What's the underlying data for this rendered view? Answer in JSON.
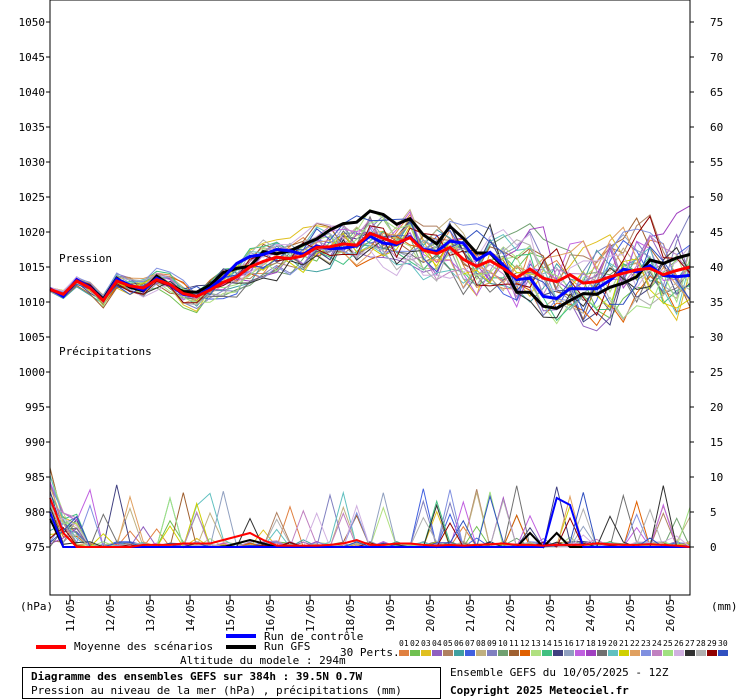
{
  "chart_data": {
    "type": "line",
    "left_axis": {
      "unit": "(hPa)",
      "ticks": [
        1050,
        1045,
        1040,
        1035,
        1030,
        1025,
        1020,
        1015,
        1010,
        1005,
        1000,
        995,
        990,
        985,
        980,
        975
      ],
      "range": [
        975,
        1050
      ]
    },
    "right_axis": {
      "unit": "(mm)",
      "ticks": [
        75,
        70,
        65,
        60,
        55,
        50,
        45,
        40,
        35,
        30,
        25,
        20,
        15,
        10,
        5,
        0
      ],
      "range": [
        0,
        75
      ]
    },
    "x_dates": [
      "11/05",
      "12/05",
      "13/05",
      "14/05",
      "15/05",
      "16/05",
      "17/05",
      "18/05",
      "19/05",
      "20/05",
      "21/05",
      "22/05",
      "23/05",
      "24/05",
      "25/05",
      "26/05"
    ],
    "x_days": [
      0.5,
      1.5,
      2.5,
      3.5,
      4.5,
      5.5,
      6.5,
      7.5,
      8.5,
      9.5,
      10.5,
      11.5,
      12.5,
      13.5,
      14.5,
      15.5
    ],
    "x_range_days": [
      0,
      16
    ],
    "labels": {
      "pressure": "Pression",
      "precip": "Précipitations"
    },
    "series": [
      {
        "name": "Moyenne des scénarios",
        "color": "#ff0000",
        "pressure": [
          1011.8,
          1011.1,
          1013.0,
          1012.0,
          1010.2,
          1013.0,
          1012.3,
          1012.0,
          1013.2,
          1012.5,
          1011.2,
          1010.8,
          1011.7,
          1012.8,
          1013.6,
          1015.0,
          1015.8,
          1016.4,
          1016.2,
          1016.6,
          1017.8,
          1017.9,
          1018.3,
          1018.1,
          1019.8,
          1019.1,
          1018.4,
          1019.2,
          1017.4,
          1016.9,
          1017.8,
          1016.1,
          1015.1,
          1015.9,
          1014.8,
          1013.5,
          1014.7,
          1013.4,
          1012.9,
          1013.9,
          1012.7,
          1012.9,
          1013.6,
          1014.1,
          1014.6,
          1014.8,
          1013.9,
          1014.5,
          1015.0
        ],
        "precip": [
          7,
          2,
          0,
          0,
          0,
          0,
          0,
          0.3,
          0.3,
          0.3,
          0.5,
          0.5,
          0.5,
          1,
          1.5,
          2,
          1,
          0.2,
          0.2,
          0.2,
          0.2,
          0.3,
          0.5,
          1,
          0.3,
          0.3,
          0.5,
          0.5,
          0.3,
          0.2,
          0.3,
          0.2,
          0.3,
          0.4,
          0.5,
          0.3,
          0.3,
          0.2,
          0.3,
          0.3,
          0.3,
          0.5,
          0.4,
          0.3,
          0.3,
          0.4,
          0.3,
          0.2,
          0
        ]
      },
      {
        "name": "Run de contrôle",
        "color": "#0000ff",
        "pressure": [
          1011.9,
          1010.8,
          1013.2,
          1012.1,
          1010.2,
          1013.3,
          1012.4,
          1011.7,
          1013.4,
          1012.4,
          1011.1,
          1010.8,
          1012.0,
          1013.5,
          1015.5,
          1016.5,
          1016.8,
          1017.5,
          1017.3,
          1016.8,
          1018.0,
          1017.6,
          1017.7,
          1018.0,
          1019.4,
          1018.4,
          1018.2,
          1019.3,
          1017.5,
          1017.2,
          1018.7,
          1018.4,
          1016.0,
          1017.1,
          1015.3,
          1013.2,
          1013.4,
          1010.8,
          1010.5,
          1011.9,
          1011.9,
          1011.9,
          1013.1,
          1014.7,
          1014.3,
          1015.2,
          1013.8,
          1013.6,
          1013.8
        ],
        "precip": [
          5,
          0,
          0,
          0,
          0,
          0,
          0,
          0,
          0,
          0,
          0,
          0,
          0,
          0,
          0,
          0,
          0,
          0,
          0,
          0,
          0,
          0,
          0,
          0,
          0,
          0,
          0,
          0,
          0,
          0,
          0,
          0,
          0,
          0,
          0,
          0,
          0,
          0,
          7,
          6,
          0,
          0,
          0,
          0,
          0,
          0,
          0,
          0,
          0
        ]
      },
      {
        "name": "Run GFS",
        "color": "#000000",
        "pressure": [
          1011.8,
          1010.9,
          1013.0,
          1012.2,
          1010.4,
          1013.4,
          1012.1,
          1011.6,
          1013.7,
          1012.4,
          1011.5,
          1011.4,
          1012.4,
          1014.2,
          1014.8,
          1015.1,
          1017.2,
          1016.9,
          1017.3,
          1018.2,
          1019.0,
          1020.3,
          1021.2,
          1021.4,
          1023.0,
          1022.5,
          1021.1,
          1021.9,
          1019.6,
          1018.3,
          1020.8,
          1019.1,
          1017.0,
          1017.0,
          1015.0,
          1011.4,
          1011.4,
          1009.4,
          1009.1,
          1010.2,
          1011.2,
          1011.1,
          1012.1,
          1012.7,
          1013.6,
          1016.0,
          1015.5,
          1016.3,
          1016.8
        ],
        "precip": [
          4,
          0,
          0,
          0,
          0,
          0,
          0,
          0,
          0,
          0,
          0,
          0,
          0,
          0,
          0.5,
          1,
          0.5,
          0,
          0,
          0,
          0,
          0,
          0,
          0,
          0,
          0,
          0,
          0,
          0,
          0,
          0,
          0,
          0,
          0,
          0,
          0,
          2,
          0,
          2,
          0,
          0,
          0,
          0,
          0,
          0,
          0,
          0,
          0,
          0
        ]
      }
    ]
  },
  "legend": {
    "mean": "Moyenne des scénarios",
    "control": "Run de contrôle",
    "gfs": "Run GFS",
    "perts_label": "30 Perts.",
    "pert_numbers": [
      "01",
      "02",
      "03",
      "04",
      "05",
      "06",
      "07",
      "08",
      "09",
      "10",
      "11",
      "12",
      "13",
      "14",
      "15",
      "16",
      "17",
      "18",
      "19",
      "20",
      "21",
      "22",
      "23",
      "24",
      "25",
      "26",
      "27",
      "28",
      "29",
      "30"
    ],
    "pert_colors": [
      "#e08040",
      "#70c050",
      "#e0c020",
      "#9060c0",
      "#b08060",
      "#40a0a0",
      "#4060e0",
      "#c0b080",
      "#8080c0",
      "#70a070",
      "#a06030",
      "#e06000",
      "#b0e080",
      "#40c080",
      "#404080",
      "#90a0c0",
      "#c060e0",
      "#a040c0",
      "#707070",
      "#60c0c0",
      "#d0d000",
      "#e0a060",
      "#8090e0",
      "#c080c0",
      "#a0e080",
      "#d0b0e0",
      "#303030",
      "#b0b0b0",
      "#900000",
      "#3050c0"
    ]
  },
  "footer": {
    "altitude": "Altitude du modele : 294m",
    "title": "Diagramme des ensembles GEFS sur 384h : 39.5N 0.7W",
    "subtitle": "Pression au niveau de la mer (hPa) , précipitations (mm)",
    "run": "Ensemble GEFS du 10/05/2025 - 12Z",
    "copyright": "Copyright 2025 Meteociel.fr"
  }
}
